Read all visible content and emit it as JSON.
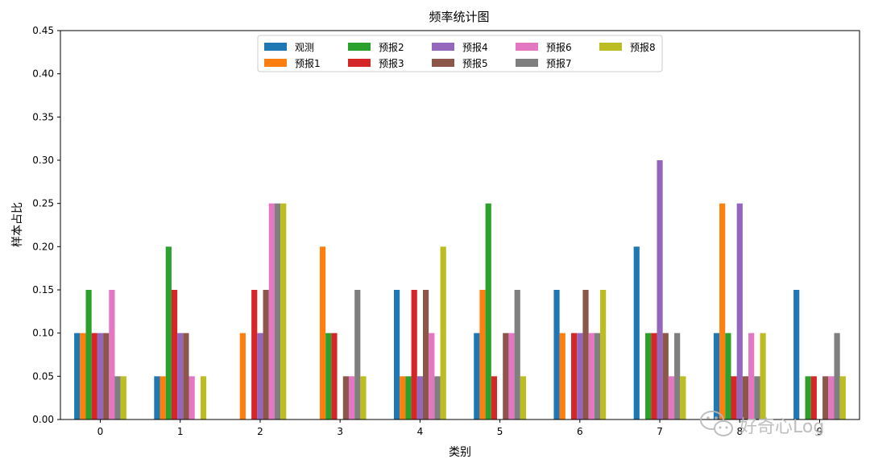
{
  "chart_data": {
    "type": "bar",
    "title": "频率统计图",
    "xlabel": "类别",
    "ylabel": "样本占比",
    "ylim": [
      0,
      0.45
    ],
    "yticks": [
      "0.00",
      "0.05",
      "0.10",
      "0.15",
      "0.20",
      "0.25",
      "0.30",
      "0.35",
      "0.40",
      "0.45"
    ],
    "categories": [
      "0",
      "1",
      "2",
      "3",
      "4",
      "5",
      "6",
      "7",
      "8",
      "9"
    ],
    "legend_position": "top-center",
    "legend_columns": 5,
    "grid": false,
    "series": [
      {
        "name": "观测",
        "color": "#1f77b4",
        "values": [
          0.1,
          0.05,
          0.0,
          0.0,
          0.15,
          0.1,
          0.15,
          0.2,
          0.1,
          0.15
        ]
      },
      {
        "name": "预报1",
        "color": "#ff7f0e",
        "values": [
          0.1,
          0.05,
          0.1,
          0.2,
          0.05,
          0.15,
          0.1,
          0.0,
          0.25,
          0.0
        ]
      },
      {
        "name": "预报2",
        "color": "#2ca02c",
        "values": [
          0.15,
          0.2,
          0.0,
          0.1,
          0.05,
          0.25,
          0.0,
          0.1,
          0.1,
          0.05
        ]
      },
      {
        "name": "预报3",
        "color": "#d62728",
        "values": [
          0.1,
          0.15,
          0.15,
          0.1,
          0.15,
          0.05,
          0.1,
          0.1,
          0.05,
          0.05
        ]
      },
      {
        "name": "预报4",
        "color": "#9467bd",
        "values": [
          0.1,
          0.1,
          0.1,
          0.0,
          0.05,
          0.0,
          0.1,
          0.3,
          0.25,
          0.0
        ]
      },
      {
        "name": "预报5",
        "color": "#8c564b",
        "values": [
          0.1,
          0.1,
          0.15,
          0.05,
          0.15,
          0.1,
          0.15,
          0.1,
          0.05,
          0.05
        ]
      },
      {
        "name": "预报6",
        "color": "#e377c2",
        "values": [
          0.15,
          0.05,
          0.25,
          0.05,
          0.1,
          0.1,
          0.1,
          0.05,
          0.1,
          0.05
        ]
      },
      {
        "name": "预报7",
        "color": "#7f7f7f",
        "values": [
          0.05,
          0.0,
          0.25,
          0.15,
          0.05,
          0.15,
          0.1,
          0.1,
          0.05,
          0.1
        ]
      },
      {
        "name": "预报8",
        "color": "#bcbd22",
        "values": [
          0.05,
          0.05,
          0.25,
          0.05,
          0.2,
          0.05,
          0.15,
          0.05,
          0.1,
          0.05
        ]
      }
    ]
  },
  "watermark": {
    "text": "好奇心Log",
    "icon": "wechat-icon"
  }
}
